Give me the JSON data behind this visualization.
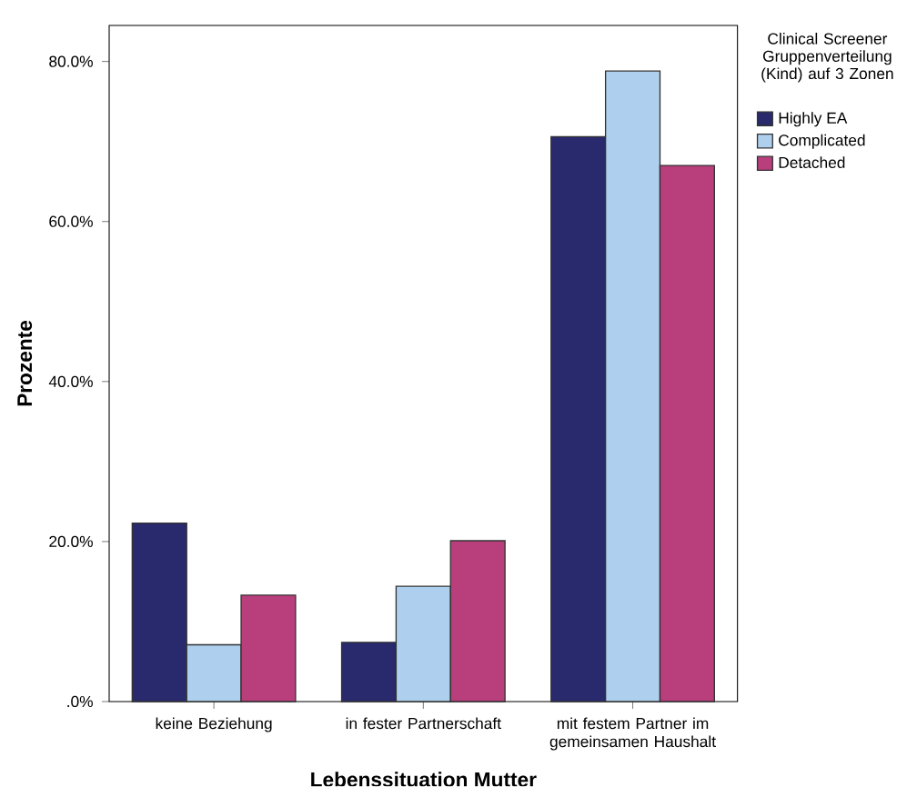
{
  "chart_data": {
    "type": "bar",
    "xlabel": "Lebenssituation Mutter",
    "ylabel": "Prozente",
    "legend_title": "Clinical Screener Gruppenverteilung (Kind) auf 3 Zonen",
    "categories": [
      "keine Beziehung",
      "in fester Partnerschaft",
      "mit festem Partner im gemeinsamen Haushalt"
    ],
    "series": [
      {
        "name": "Highly EA",
        "color": "#29296e",
        "values": [
          22.3,
          7.4,
          70.6
        ]
      },
      {
        "name": "Complicated",
        "color": "#aed0ee",
        "values": [
          7.1,
          14.4,
          78.8
        ]
      },
      {
        "name": "Detached",
        "color": "#b83e7c",
        "values": [
          13.3,
          20.1,
          67.0
        ]
      }
    ],
    "ylim": [
      0,
      84.5
    ],
    "yticks": [
      {
        "value": 0,
        "label": ".0%"
      },
      {
        "value": 20,
        "label": "20.0%"
      },
      {
        "value": 40,
        "label": "40.0%"
      },
      {
        "value": 60,
        "label": "60.0%"
      },
      {
        "value": 80,
        "label": "80.0%"
      }
    ],
    "grid": false,
    "legend": "top right"
  }
}
